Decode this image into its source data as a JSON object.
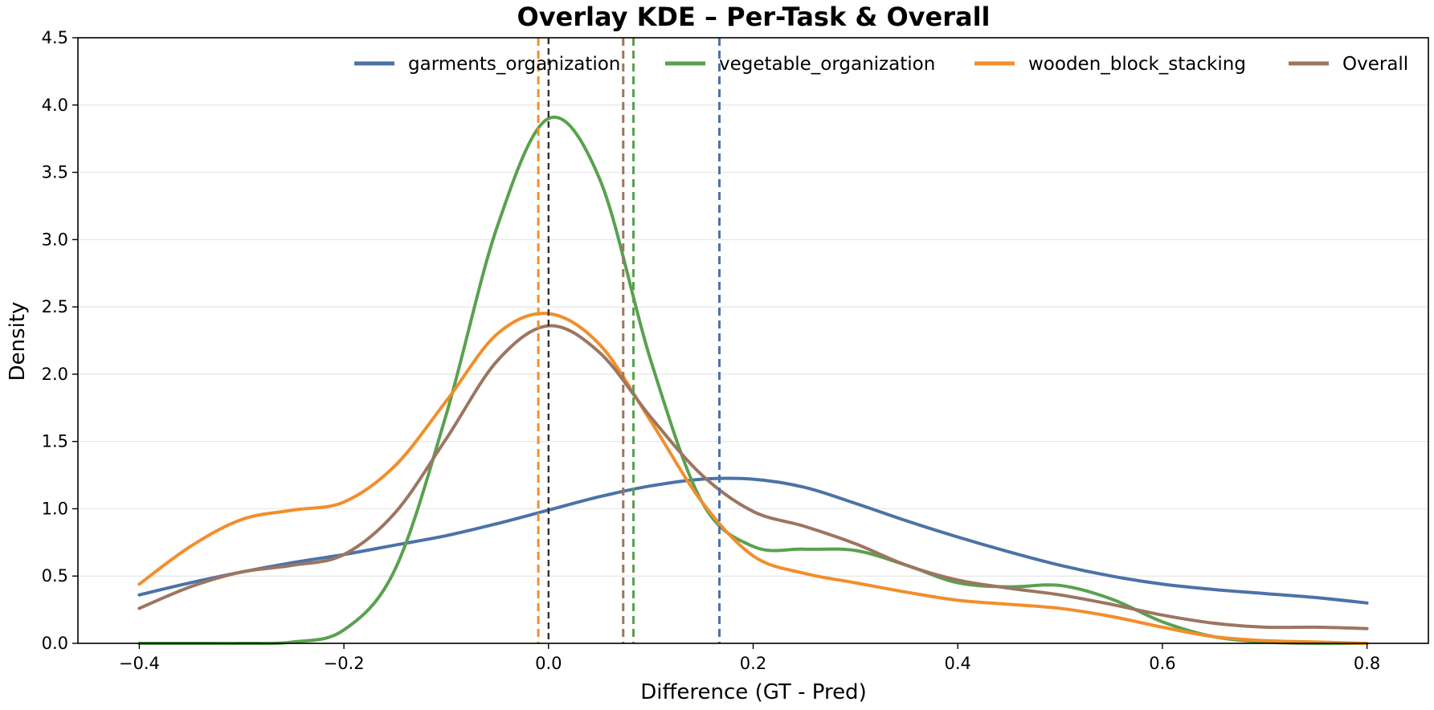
{
  "chart_data": {
    "type": "line",
    "title": "Overlay KDE – Per-Task & Overall",
    "xlabel": "Difference (GT - Pred)",
    "ylabel": "Density",
    "xlim": [
      -0.46,
      0.86
    ],
    "ylim": [
      0,
      4.5
    ],
    "xticks": [
      -0.4,
      -0.2,
      0.0,
      0.2,
      0.4,
      0.6,
      0.8
    ],
    "xtick_labels": [
      "−0.4",
      "−0.2",
      "0.0",
      "0.2",
      "0.4",
      "0.6",
      "0.8"
    ],
    "yticks": [
      0,
      0.5,
      1.0,
      1.5,
      2.0,
      2.5,
      3.0,
      3.5,
      4.0,
      4.5
    ],
    "ytick_labels": [
      "0.0",
      "0.5",
      "1.0",
      "1.5",
      "2.0",
      "2.5",
      "3.0",
      "3.5",
      "4.0",
      "4.5"
    ],
    "grid": "horizontal",
    "legend_position": "top-right",
    "x": [
      -0.4,
      -0.35,
      -0.3,
      -0.25,
      -0.2,
      -0.15,
      -0.1,
      -0.05,
      0.0,
      0.05,
      0.1,
      0.15,
      0.2,
      0.25,
      0.3,
      0.35,
      0.4,
      0.45,
      0.5,
      0.55,
      0.6,
      0.65,
      0.7,
      0.75,
      0.8
    ],
    "series": [
      {
        "name": "garments_organization",
        "color": "#4c72a8",
        "mean": 0.167,
        "values": [
          0.36,
          0.45,
          0.53,
          0.6,
          0.66,
          0.73,
          0.8,
          0.89,
          0.99,
          1.09,
          1.17,
          1.22,
          1.22,
          1.16,
          1.04,
          0.91,
          0.79,
          0.68,
          0.58,
          0.5,
          0.44,
          0.4,
          0.37,
          0.34,
          0.3
        ]
      },
      {
        "name": "vegetable_organization",
        "color": "#59a14f",
        "mean": 0.083,
        "values": [
          0.0,
          0.0,
          0.0,
          0.01,
          0.1,
          0.55,
          1.7,
          3.1,
          3.9,
          3.45,
          2.1,
          1.05,
          0.72,
          0.7,
          0.69,
          0.58,
          0.45,
          0.42,
          0.43,
          0.33,
          0.16,
          0.05,
          0.01,
          0.0,
          0.0
        ]
      },
      {
        "name": "wooden_block_stacking",
        "color": "#f28e2b",
        "mean": -0.01,
        "values": [
          0.44,
          0.72,
          0.92,
          0.99,
          1.05,
          1.32,
          1.8,
          2.3,
          2.45,
          2.22,
          1.65,
          1.05,
          0.65,
          0.52,
          0.45,
          0.38,
          0.32,
          0.29,
          0.26,
          0.2,
          0.12,
          0.05,
          0.02,
          0.01,
          0.0
        ]
      },
      {
        "name": "Overall",
        "color": "#9c7561",
        "mean": 0.073,
        "values": [
          0.26,
          0.42,
          0.53,
          0.58,
          0.66,
          0.97,
          1.52,
          2.1,
          2.36,
          2.16,
          1.68,
          1.25,
          0.98,
          0.87,
          0.74,
          0.58,
          0.47,
          0.41,
          0.36,
          0.29,
          0.21,
          0.15,
          0.12,
          0.12,
          0.11
        ]
      }
    ],
    "zero_line": {
      "x": 0.0,
      "color": "#333333"
    }
  }
}
